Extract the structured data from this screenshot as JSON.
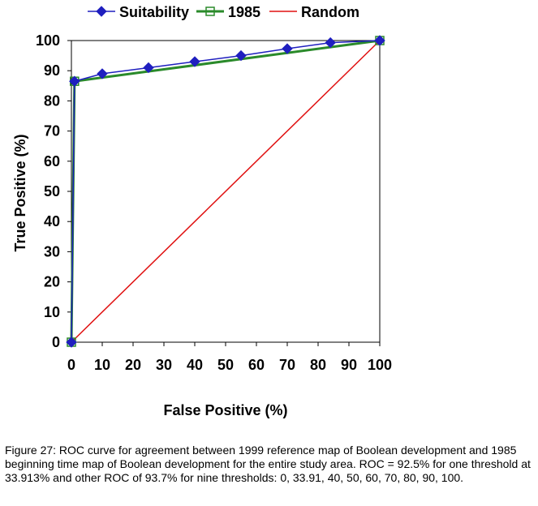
{
  "chart_data": {
    "type": "line",
    "xlabel": "False Positive (%)",
    "ylabel": "True Positive (%)",
    "xlim": [
      0,
      100
    ],
    "ylim": [
      0,
      100
    ],
    "xticks": [
      0,
      10,
      20,
      30,
      40,
      50,
      60,
      70,
      80,
      90,
      100
    ],
    "yticks": [
      0,
      10,
      20,
      30,
      40,
      50,
      60,
      70,
      80,
      90,
      100
    ],
    "grid": false,
    "legend_position": "top",
    "series": [
      {
        "name": "Suitability",
        "color": "#1f1fbf",
        "marker": "diamond",
        "x": [
          0,
          1,
          10,
          25,
          40,
          55,
          70,
          84,
          100
        ],
        "y": [
          0,
          86.5,
          89,
          91,
          93,
          95,
          97.3,
          99.3,
          100
        ]
      },
      {
        "name": "1985",
        "color": "#2a8a2a",
        "marker": "square",
        "x": [
          0,
          1,
          100
        ],
        "y": [
          0,
          86.5,
          100
        ]
      },
      {
        "name": "Random",
        "color": "#e01010",
        "marker": "none",
        "x": [
          0,
          100
        ],
        "y": [
          0,
          100
        ]
      }
    ]
  },
  "caption": "Figure 27: ROC curve for agreement between 1999 reference map of Boolean development and 1985 beginning time map of Boolean development for the entire study area. ROC = 92.5% for one threshold at 33.913% and other ROC of 93.7% for nine thresholds: 0, 33.91, 40, 50, 60, 70, 80, 90, 100."
}
